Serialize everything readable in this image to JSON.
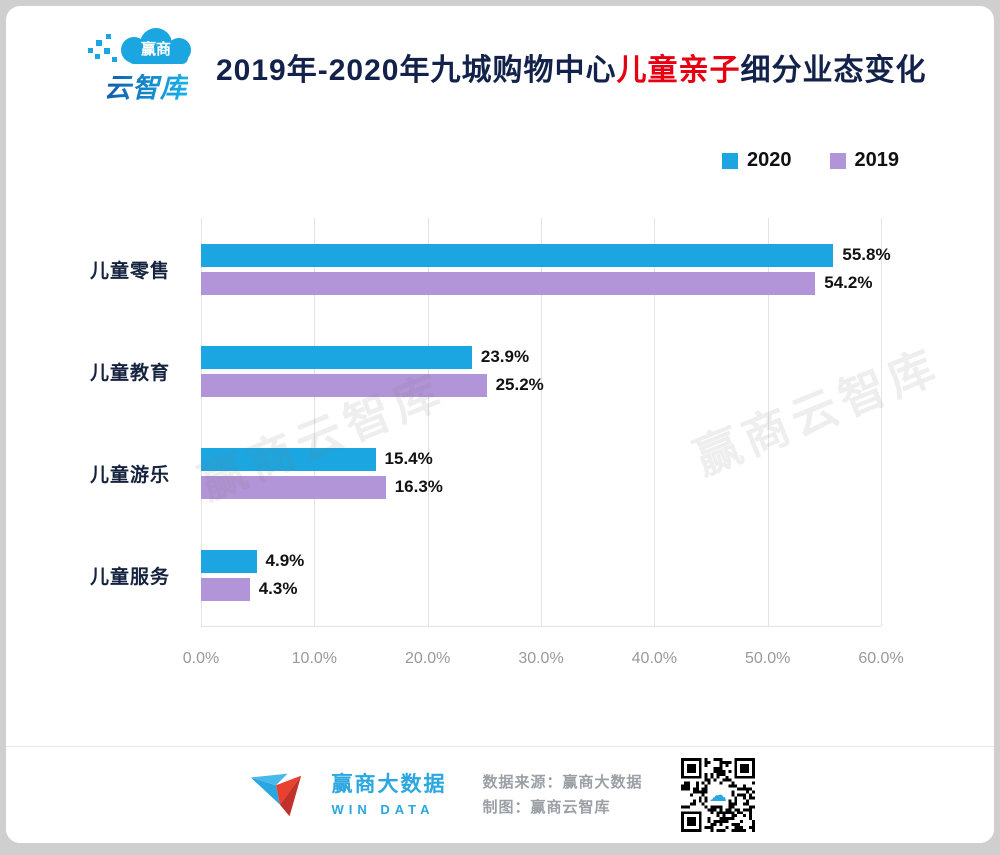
{
  "page": {
    "title_prefix": "2019年-2020年九城购物中心",
    "title_highlight": "儿童亲子",
    "title_suffix": "细分业态变化"
  },
  "logo": {
    "badge_text": "赢商",
    "name": "云智库"
  },
  "legend": [
    {
      "label": "2020",
      "color": "#1ba6e1"
    },
    {
      "label": "2019",
      "color": "#b294d8"
    }
  ],
  "chart_data": {
    "type": "bar",
    "orientation": "horizontal",
    "title": "2019年-2020年九城购物中心儿童亲子细分业态变化",
    "categories": [
      "儿童零售",
      "儿童教育",
      "儿童游乐",
      "儿童服务"
    ],
    "series": [
      {
        "name": "2020",
        "color": "#1ba6e1",
        "values": [
          55.8,
          23.9,
          15.4,
          4.9
        ]
      },
      {
        "name": "2019",
        "color": "#b294d8",
        "values": [
          54.2,
          25.2,
          16.3,
          4.3
        ]
      }
    ],
    "value_suffix": "%",
    "x_ticks": [
      "0.0%",
      "10.0%",
      "20.0%",
      "30.0%",
      "40.0%",
      "50.0%",
      "60.0%"
    ],
    "xlim": [
      0,
      60
    ],
    "grid": true,
    "legend_position": "top-right"
  },
  "watermark": "赢商云智库",
  "footer": {
    "brand_name": "赢商大数据",
    "brand_sub": "WIN DATA",
    "source_line": "数据来源：赢商大数据",
    "credit_line": "制图：赢商云智库"
  },
  "colors": {
    "title": "#13224a",
    "title_highlight": "#e60012",
    "bar_2020": "#1ba6e1",
    "bar_2019": "#b294d8",
    "axis_label": "#999999",
    "brand_blue": "#2aa7e0",
    "brand_red": "#e8412f"
  }
}
